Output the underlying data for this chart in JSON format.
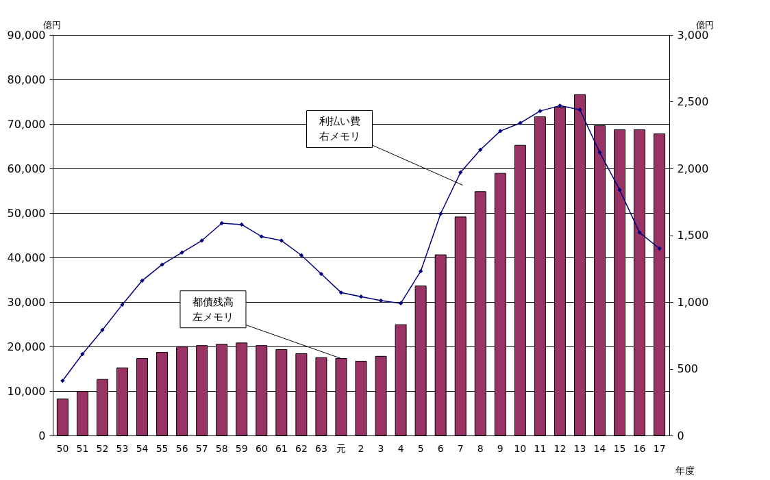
{
  "chart_data": {
    "type": "bar",
    "xlabel": "年度",
    "ylabel": "億円",
    "y2label": "億円",
    "categories": [
      "50",
      "51",
      "52",
      "53",
      "54",
      "55",
      "56",
      "57",
      "58",
      "59",
      "60",
      "61",
      "62",
      "63",
      "元",
      "2",
      "3",
      "4",
      "5",
      "6",
      "7",
      "8",
      "9",
      "10",
      "11",
      "12",
      "13",
      "14",
      "15",
      "16",
      "17"
    ],
    "series": [
      {
        "color": "#993366",
        "values": [
          8200,
          9900,
          12600,
          15200,
          17300,
          18700,
          20000,
          20200,
          20500,
          20800,
          20200,
          19300,
          18400,
          17500,
          17300,
          16700,
          17800,
          24900,
          33600,
          40600,
          49100,
          54800,
          58900,
          65200,
          71600,
          73800,
          76600,
          69600,
          68700,
          68700,
          67800
        ]
      },
      {
        "type": "line",
        "axis": "y2",
        "color": "#000080",
        "marker": "diamond",
        "values": [
          410,
          610,
          790,
          980,
          1160,
          1280,
          1370,
          1460,
          1590,
          1580,
          1490,
          1460,
          1350,
          1210,
          1070,
          1040,
          1010,
          990,
          1230,
          1660,
          1970,
          2140,
          2280,
          2340,
          2430,
          2470,
          2440,
          2120,
          1840,
          1520,
          1400
        ]
      }
    ],
    "ylim": [
      0,
      90000
    ],
    "yticks": [
      {
        "value": 0,
        "label": "0"
      },
      {
        "value": 10000,
        "label": "10,000"
      },
      {
        "value": 20000,
        "label": "20,000"
      },
      {
        "value": 30000,
        "label": "30,000"
      },
      {
        "value": 40000,
        "label": "40,000"
      },
      {
        "value": 50000,
        "label": "50,000"
      },
      {
        "value": 60000,
        "label": "60,000"
      },
      {
        "value": 70000,
        "label": "70,000"
      },
      {
        "value": 80000,
        "label": "80,000"
      },
      {
        "value": 90000,
        "label": "90,000"
      }
    ],
    "y2lim": [
      0,
      3000
    ],
    "y2ticks": [
      {
        "value": 0,
        "label": "0"
      },
      {
        "value": 500,
        "label": "500"
      },
      {
        "value": 1000,
        "label": "1,000"
      },
      {
        "value": 1500,
        "label": "1,500"
      },
      {
        "value": 2000,
        "label": "2,000"
      },
      {
        "value": 2500,
        "label": "2,500"
      },
      {
        "value": 3000,
        "label": "3,000"
      }
    ],
    "grid": "y",
    "legend": false,
    "annotations": [
      "利払い費右メモリ",
      {
        "text": "都債残高左メモリ",
        "x": "元",
        "y": 17300
      }
    ]
  }
}
